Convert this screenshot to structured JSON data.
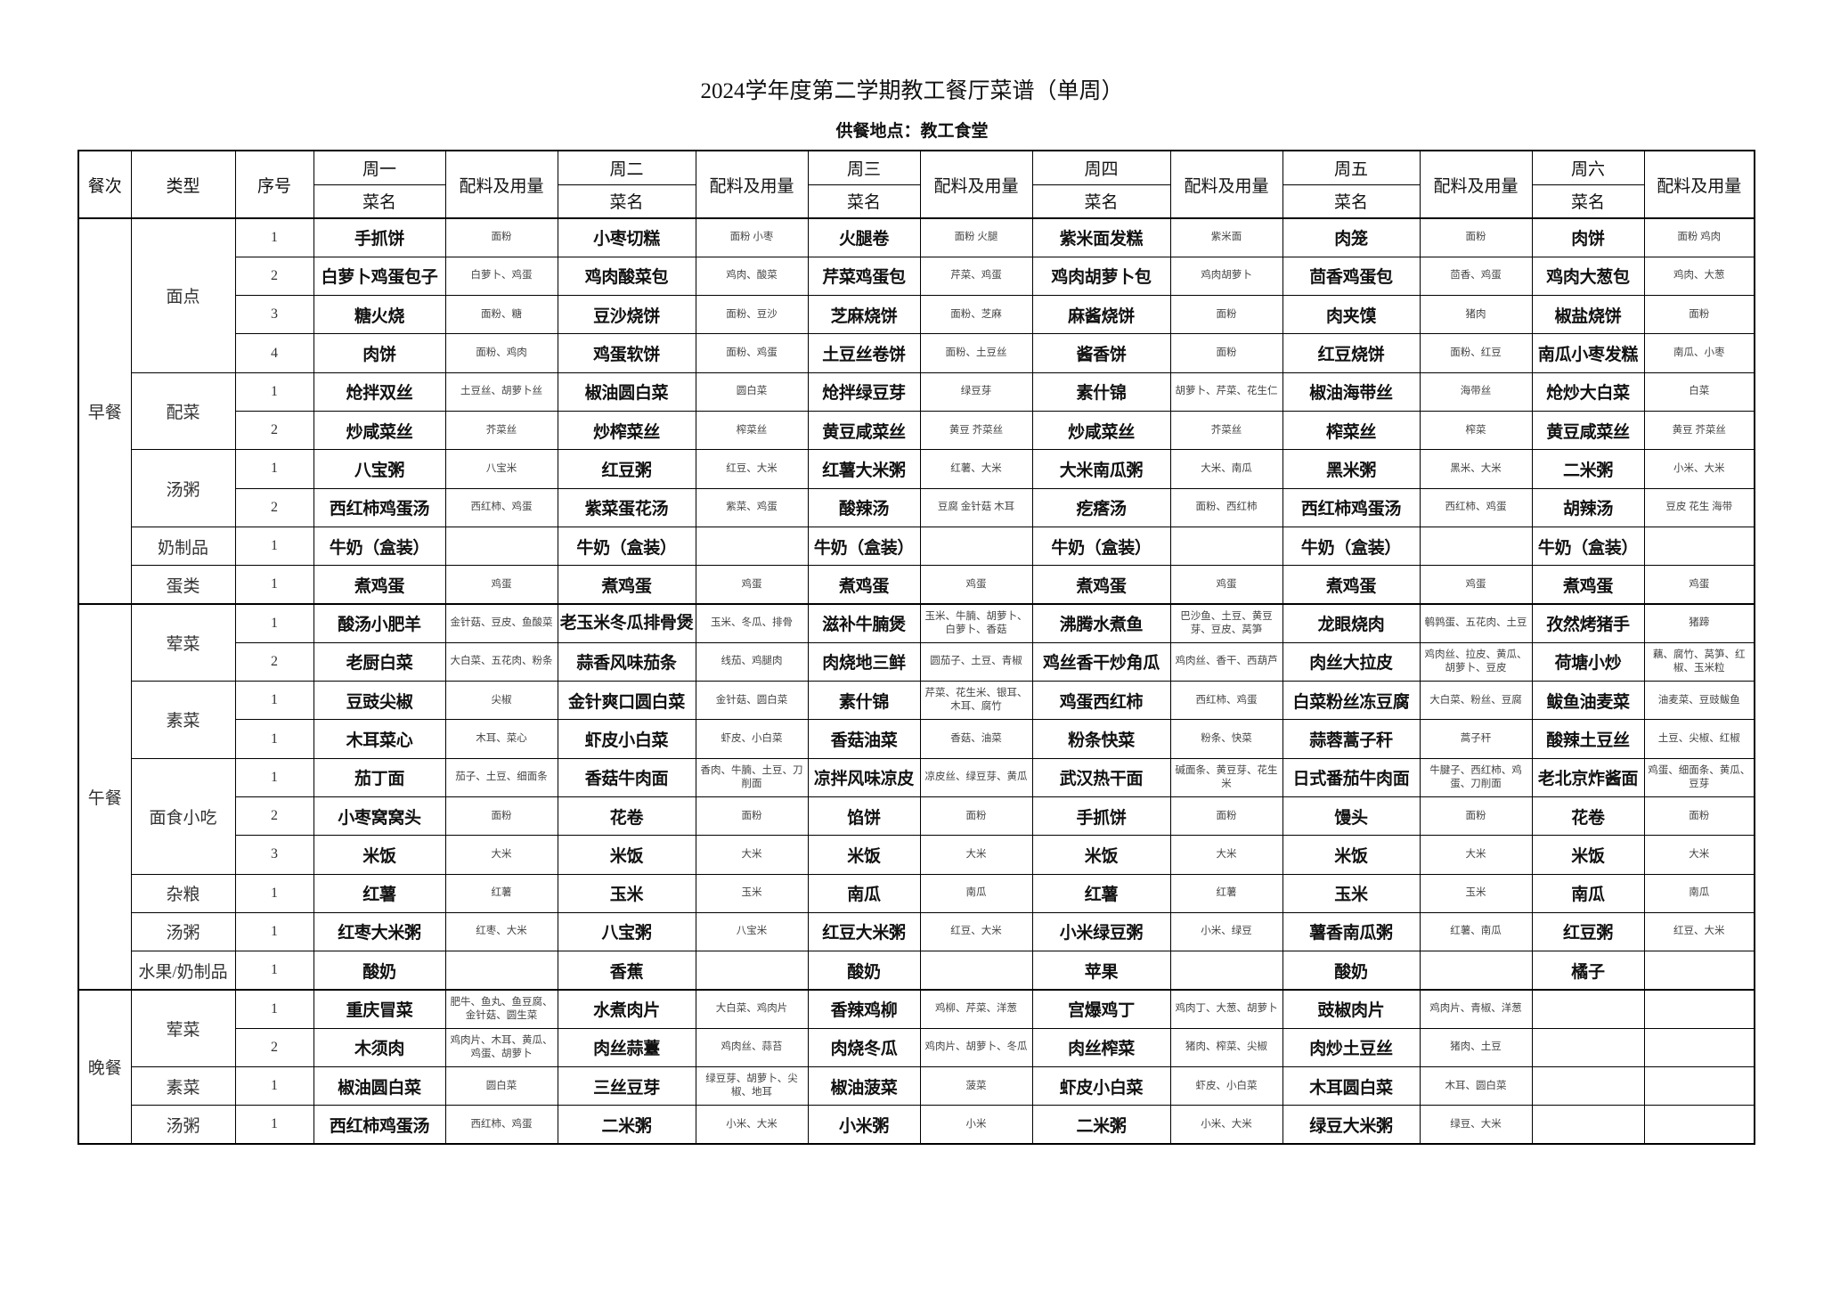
{
  "title": "2024学年度第二学期教工餐厅菜谱（单周）",
  "location": "供餐地点：教工食堂",
  "header": {
    "meal": "餐次",
    "type": "类型",
    "seq": "序号",
    "dish": "菜名",
    "ingredients": "配料及用量",
    "days": [
      "周一",
      "周二",
      "周三",
      "周四",
      "周五",
      "周六"
    ]
  },
  "meals": [
    {
      "name": "早餐",
      "groups": [
        {
          "type": "面点",
          "rows": [
            {
              "seq": "1",
              "days": [
                [
                  "手抓饼",
                  "面粉"
                ],
                [
                  "小枣切糕",
                  "面粉  小枣"
                ],
                [
                  "火腿卷",
                  "面粉  火腿"
                ],
                [
                  "紫米面发糕",
                  "紫米面"
                ],
                [
                  "肉笼",
                  "面粉"
                ],
                [
                  "肉饼",
                  "面粉  鸡肉"
                ]
              ]
            },
            {
              "seq": "2",
              "days": [
                [
                  "白萝卜鸡蛋包子",
                  "白萝卜、鸡蛋"
                ],
                [
                  "鸡肉酸菜包",
                  "鸡肉、酸菜"
                ],
                [
                  "芹菜鸡蛋包",
                  "芹菜、鸡蛋"
                ],
                [
                  "鸡肉胡萝卜包",
                  "鸡肉胡萝卜"
                ],
                [
                  "茴香鸡蛋包",
                  "茴香、鸡蛋"
                ],
                [
                  "鸡肉大葱包",
                  "鸡肉、大葱"
                ]
              ]
            },
            {
              "seq": "3",
              "days": [
                [
                  "糖火烧",
                  "面粉、糖"
                ],
                [
                  "豆沙烧饼",
                  "面粉、豆沙"
                ],
                [
                  "芝麻烧饼",
                  "面粉、芝麻"
                ],
                [
                  "麻酱烧饼",
                  "面粉"
                ],
                [
                  "肉夹馍",
                  "猪肉"
                ],
                [
                  "椒盐烧饼",
                  "面粉"
                ]
              ]
            },
            {
              "seq": "4",
              "days": [
                [
                  "肉饼",
                  "面粉、鸡肉"
                ],
                [
                  "鸡蛋软饼",
                  "面粉、鸡蛋"
                ],
                [
                  "土豆丝卷饼",
                  "面粉、土豆丝"
                ],
                [
                  "酱香饼",
                  "面粉"
                ],
                [
                  "红豆烧饼",
                  "面粉、红豆"
                ],
                [
                  "南瓜小枣发糕",
                  "南瓜、小枣"
                ]
              ]
            }
          ]
        },
        {
          "type": "配菜",
          "rows": [
            {
              "seq": "1",
              "days": [
                [
                  "炝拌双丝",
                  "土豆丝、胡萝卜丝"
                ],
                [
                  "椒油圆白菜",
                  "圆白菜"
                ],
                [
                  "炝拌绿豆芽",
                  "绿豆芽"
                ],
                [
                  "素什锦",
                  "胡萝卜、芹菜、花生仁"
                ],
                [
                  "椒油海带丝",
                  "海带丝"
                ],
                [
                  "炝炒大白菜",
                  "白菜"
                ]
              ]
            },
            {
              "seq": "2",
              "days": [
                [
                  "炒咸菜丝",
                  "芥菜丝"
                ],
                [
                  "炒榨菜丝",
                  "榨菜丝"
                ],
                [
                  "黄豆咸菜丝",
                  "黄豆  芥菜丝"
                ],
                [
                  "炒咸菜丝",
                  "芥菜丝"
                ],
                [
                  "榨菜丝",
                  "榨菜"
                ],
                [
                  "黄豆咸菜丝",
                  "黄豆  芥菜丝"
                ]
              ]
            }
          ]
        },
        {
          "type": "汤粥",
          "rows": [
            {
              "seq": "1",
              "days": [
                [
                  "八宝粥",
                  "八宝米"
                ],
                [
                  "红豆粥",
                  "红豆、大米"
                ],
                [
                  "红薯大米粥",
                  "红薯、大米"
                ],
                [
                  "大米南瓜粥",
                  "大米、南瓜"
                ],
                [
                  "黑米粥",
                  "黑米、大米"
                ],
                [
                  "二米粥",
                  "小米、大米"
                ]
              ]
            },
            {
              "seq": "2",
              "days": [
                [
                  "西红柿鸡蛋汤",
                  "西红柿、鸡蛋"
                ],
                [
                  "紫菜蛋花汤",
                  "紫菜、鸡蛋"
                ],
                [
                  "酸辣汤",
                  "豆腐  金针菇  木耳"
                ],
                [
                  "疙瘩汤",
                  "面粉、西红柿"
                ],
                [
                  "西红柿鸡蛋汤",
                  "西红柿、鸡蛋"
                ],
                [
                  "胡辣汤",
                  "豆皮  花生  海带"
                ]
              ]
            }
          ]
        },
        {
          "type": "奶制品",
          "rows": [
            {
              "seq": "1",
              "days": [
                [
                  "牛奶（盒装）",
                  ""
                ],
                [
                  "牛奶（盒装）",
                  ""
                ],
                [
                  "牛奶（盒装）",
                  ""
                ],
                [
                  "牛奶（盒装）",
                  ""
                ],
                [
                  "牛奶（盒装）",
                  ""
                ],
                [
                  "牛奶（盒装）",
                  ""
                ]
              ]
            }
          ]
        },
        {
          "type": "蛋类",
          "rows": [
            {
              "seq": "1",
              "days": [
                [
                  "煮鸡蛋",
                  "鸡蛋"
                ],
                [
                  "煮鸡蛋",
                  "鸡蛋"
                ],
                [
                  "煮鸡蛋",
                  "鸡蛋"
                ],
                [
                  "煮鸡蛋",
                  "鸡蛋"
                ],
                [
                  "煮鸡蛋",
                  "鸡蛋"
                ],
                [
                  "煮鸡蛋",
                  "鸡蛋"
                ]
              ]
            }
          ]
        }
      ]
    },
    {
      "name": "午餐",
      "groups": [
        {
          "type": "荤菜",
          "rows": [
            {
              "seq": "1",
              "days": [
                [
                  "酸汤小肥羊",
                  "金针菇、豆皮、鱼酸菜"
                ],
                [
                  "老玉米冬瓜排骨煲",
                  "玉米、冬瓜、排骨"
                ],
                [
                  "滋补牛腩煲",
                  "玉米、牛腩、胡萝卜、白萝卜、香菇"
                ],
                [
                  "沸腾水煮鱼",
                  "巴沙鱼、土豆、黄豆芽、豆皮、莴笋"
                ],
                [
                  "龙眼烧肉",
                  "鹌鹑蛋、五花肉、土豆"
                ],
                [
                  "孜然烤猪手",
                  "猪蹄"
                ]
              ]
            },
            {
              "seq": "2",
              "days": [
                [
                  "老厨白菜",
                  "大白菜、五花肉、粉条"
                ],
                [
                  "蒜香风味茄条",
                  "线茄、鸡腿肉"
                ],
                [
                  "肉烧地三鲜",
                  "圆茄子、土豆、青椒"
                ],
                [
                  "鸡丝香干炒角瓜",
                  "鸡肉丝、香干、西葫芦"
                ],
                [
                  "肉丝大拉皮",
                  "鸡肉丝、拉皮、黄瓜、胡萝卜、豆皮"
                ],
                [
                  "荷塘小炒",
                  "藕、腐竹、莴笋、红椒、玉米粒"
                ]
              ]
            }
          ]
        },
        {
          "type": "素菜",
          "rows": [
            {
              "seq": "1",
              "days": [
                [
                  "豆豉尖椒",
                  "尖椒"
                ],
                [
                  "金针爽口圆白菜",
                  "金针菇、圆白菜"
                ],
                [
                  "素什锦",
                  "芹菜、花生米、银耳、木耳、腐竹"
                ],
                [
                  "鸡蛋西红柿",
                  "西红柿、鸡蛋"
                ],
                [
                  "白菜粉丝冻豆腐",
                  "大白菜、粉丝、豆腐"
                ],
                [
                  "鲅鱼油麦菜",
                  "油麦菜、豆豉鲅鱼"
                ]
              ]
            },
            {
              "seq": "1",
              "days": [
                [
                  "木耳菜心",
                  "木耳、菜心"
                ],
                [
                  "虾皮小白菜",
                  "虾皮、小白菜"
                ],
                [
                  "香菇油菜",
                  "香菇、油菜"
                ],
                [
                  "粉条快菜",
                  "粉条、快菜"
                ],
                [
                  "蒜蓉蒿子秆",
                  "蒿子秆"
                ],
                [
                  "酸辣土豆丝",
                  "土豆、尖椒、红椒"
                ]
              ]
            }
          ]
        },
        {
          "type": "面食小吃",
          "rows": [
            {
              "seq": "1",
              "days": [
                [
                  "茄丁面",
                  "茄子、土豆、细面条"
                ],
                [
                  "香菇牛肉面",
                  "香肉、牛腩、土豆、刀削面"
                ],
                [
                  "凉拌风味凉皮",
                  "凉皮丝、绿豆芽、黄瓜"
                ],
                [
                  "武汉热干面",
                  "碱面条、黄豆芽、花生米"
                ],
                [
                  "日式番茄牛肉面",
                  "牛腱子、西红柿、鸡蛋、刀削面"
                ],
                [
                  "老北京炸酱面",
                  "鸡蛋、细面条、黄瓜、豆芽"
                ]
              ]
            },
            {
              "seq": "2",
              "days": [
                [
                  "小枣窝窝头",
                  "面粉"
                ],
                [
                  "花卷",
                  "面粉"
                ],
                [
                  "馅饼",
                  "面粉"
                ],
                [
                  "手抓饼",
                  "面粉"
                ],
                [
                  "馒头",
                  "面粉"
                ],
                [
                  "花卷",
                  "面粉"
                ]
              ]
            },
            {
              "seq": "3",
              "days": [
                [
                  "米饭",
                  "大米"
                ],
                [
                  "米饭",
                  "大米"
                ],
                [
                  "米饭",
                  "大米"
                ],
                [
                  "米饭",
                  "大米"
                ],
                [
                  "米饭",
                  "大米"
                ],
                [
                  "米饭",
                  "大米"
                ]
              ]
            }
          ]
        },
        {
          "type": "杂粮",
          "rows": [
            {
              "seq": "1",
              "days": [
                [
                  "红薯",
                  "红薯"
                ],
                [
                  "玉米",
                  "玉米"
                ],
                [
                  "南瓜",
                  "南瓜"
                ],
                [
                  "红薯",
                  "红薯"
                ],
                [
                  "玉米",
                  "玉米"
                ],
                [
                  "南瓜",
                  "南瓜"
                ]
              ]
            }
          ]
        },
        {
          "type": "汤粥",
          "rows": [
            {
              "seq": "1",
              "days": [
                [
                  "红枣大米粥",
                  "红枣、大米"
                ],
                [
                  "八宝粥",
                  "八宝米"
                ],
                [
                  "红豆大米粥",
                  "红豆、大米"
                ],
                [
                  "小米绿豆粥",
                  "小米、绿豆"
                ],
                [
                  "薯香南瓜粥",
                  "红薯、南瓜"
                ],
                [
                  "红豆粥",
                  "红豆、大米"
                ]
              ]
            }
          ]
        },
        {
          "type": "水果/奶制品",
          "rows": [
            {
              "seq": "1",
              "days": [
                [
                  "酸奶",
                  ""
                ],
                [
                  "香蕉",
                  ""
                ],
                [
                  "酸奶",
                  ""
                ],
                [
                  "苹果",
                  ""
                ],
                [
                  "酸奶",
                  ""
                ],
                [
                  "橘子",
                  ""
                ]
              ]
            }
          ]
        }
      ]
    },
    {
      "name": "晚餐",
      "groups": [
        {
          "type": "荤菜",
          "rows": [
            {
              "seq": "1",
              "days": [
                [
                  "重庆冒菜",
                  "肥牛、鱼丸、鱼豆腐、金针菇、圆生菜"
                ],
                [
                  "水煮肉片",
                  "大白菜、鸡肉片"
                ],
                [
                  "香辣鸡柳",
                  "鸡柳、芹菜、洋葱"
                ],
                [
                  "宫爆鸡丁",
                  "鸡肉丁、大葱、胡萝卜"
                ],
                [
                  "豉椒肉片",
                  "鸡肉片、青椒、洋葱"
                ],
                [
                  "",
                  ""
                ]
              ]
            },
            {
              "seq": "2",
              "days": [
                [
                  "木须肉",
                  "鸡肉片、木耳、黄瓜、鸡蛋、胡萝卜"
                ],
                [
                  "肉丝蒜薹",
                  "鸡肉丝、蒜苔"
                ],
                [
                  "肉烧冬瓜",
                  "鸡肉片、胡萝卜、冬瓜"
                ],
                [
                  "肉丝榨菜",
                  "猪肉、榨菜、尖椒"
                ],
                [
                  "肉炒土豆丝",
                  "猪肉、土豆"
                ],
                [
                  "",
                  ""
                ]
              ]
            }
          ]
        },
        {
          "type": "素菜",
          "rows": [
            {
              "seq": "1",
              "days": [
                [
                  "椒油圆白菜",
                  "圆白菜"
                ],
                [
                  "三丝豆芽",
                  "绿豆芽、胡萝卜、尖椒、地耳"
                ],
                [
                  "椒油菠菜",
                  "菠菜"
                ],
                [
                  "虾皮小白菜",
                  "虾皮、小白菜"
                ],
                [
                  "木耳圆白菜",
                  "木耳、圆白菜"
                ],
                [
                  "",
                  ""
                ]
              ]
            }
          ]
        },
        {
          "type": "汤粥",
          "rows": [
            {
              "seq": "1",
              "days": [
                [
                  "西红柿鸡蛋汤",
                  "西红柿、鸡蛋"
                ],
                [
                  "二米粥",
                  "小米、大米"
                ],
                [
                  "小米粥",
                  "小米"
                ],
                [
                  "二米粥",
                  "小米、大米"
                ],
                [
                  "绿豆大米粥",
                  "绿豆、大米"
                ],
                [
                  "",
                  ""
                ]
              ]
            }
          ]
        }
      ]
    }
  ]
}
